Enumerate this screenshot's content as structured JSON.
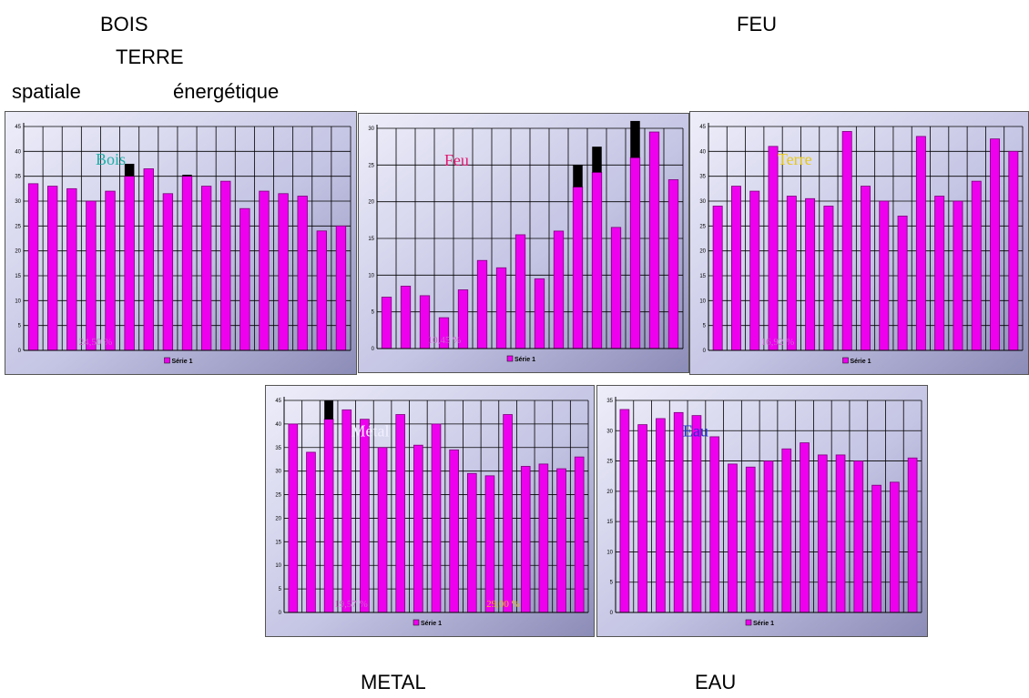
{
  "labels": {
    "bois": "BOIS",
    "terre": "TERRE",
    "spatiale": "spatiale",
    "energetique": "énergétique",
    "feu": "FEU",
    "metal": "METAL",
    "eau": "EAU"
  },
  "colors": {
    "bar": "#ee00ee",
    "bar_top": "#000000",
    "bg_light": "#eeeefa",
    "bg_dark": "#8c8cb8",
    "grid": "#000000"
  },
  "chart_data": [
    {
      "id": "bois",
      "type": "bar",
      "ylim": [
        0,
        45
      ],
      "yticks": [
        "45",
        "40",
        "35",
        "30",
        "25",
        "20",
        "15",
        "10",
        "5",
        "0"
      ],
      "values": [
        33.5,
        33,
        32.5,
        30,
        32,
        35,
        36.5,
        31.5,
        35,
        33,
        34,
        28.5,
        32,
        31.5,
        31,
        24,
        25
      ],
      "highlights": [
        null,
        null,
        null,
        null,
        null,
        2.5,
        null,
        null,
        0.3,
        null,
        null,
        null,
        null,
        null,
        null,
        null,
        null
      ],
      "title": "Bois",
      "title_color": "#20b0a8",
      "legend": "Série 1",
      "annotations": [
        {
          "text": "24,50 %",
          "color": "#d060d0"
        },
        {
          "text": "",
          "color": "#e8b820"
        }
      ]
    },
    {
      "id": "feu",
      "type": "bar",
      "ylim": [
        0,
        30
      ],
      "yticks": [
        "30",
        "25",
        "20",
        "15",
        "10",
        "5",
        "0"
      ],
      "values": [
        7,
        8.5,
        7.2,
        4.2,
        8,
        12,
        11,
        15.5,
        9.5,
        16,
        22,
        24,
        16.5,
        26,
        29.5,
        23
      ],
      "highlights": [
        null,
        null,
        null,
        null,
        null,
        null,
        null,
        null,
        null,
        null,
        3,
        3.5,
        null,
        5,
        null,
        null
      ],
      "title": "Feu",
      "title_color": "#e01a70",
      "legend": "Série 1",
      "annotations": [
        {
          "text": "10,45 %",
          "color": "#d060d0"
        },
        {
          "text": "",
          "color": "#e8b820"
        }
      ]
    },
    {
      "id": "terre",
      "type": "bar",
      "ylim": [
        0,
        45
      ],
      "yticks": [
        "45",
        "40",
        "35",
        "30",
        "25",
        "20",
        "15",
        "10",
        "5",
        "0"
      ],
      "values": [
        29,
        33,
        32,
        41,
        31,
        30.5,
        29,
        44,
        33,
        30,
        27,
        43,
        31,
        30,
        34,
        42.5,
        40
      ],
      "highlights": null,
      "title": "Terre",
      "title_color": "#e8c810",
      "legend": "Série 1",
      "annotations": [
        {
          "text": "16,92 %",
          "color": "#d060d0"
        },
        {
          "text": "",
          "color": "#e8b820"
        }
      ]
    },
    {
      "id": "metal",
      "type": "bar",
      "ylim": [
        0,
        45
      ],
      "yticks": [
        "45",
        "40",
        "35",
        "30",
        "25",
        "20",
        "15",
        "10",
        "5",
        "0"
      ],
      "values": [
        40,
        34,
        41,
        43,
        41,
        35,
        42,
        35.5,
        40,
        34.5,
        29.5,
        29,
        42,
        31,
        31.5,
        30.5,
        33
      ],
      "highlights": [
        null,
        null,
        4,
        null,
        null,
        null,
        null,
        null,
        null,
        null,
        null,
        null,
        null,
        null,
        null,
        null,
        null
      ],
      "title": "Métal",
      "title_color": "#f0f0ff",
      "legend": "Série 1",
      "annotations": [
        {
          "text": "19,57 %",
          "color": "#d060d0"
        },
        {
          "text": "29,00 %",
          "color": "#e8b820"
        }
      ]
    },
    {
      "id": "eau",
      "type": "bar",
      "ylim": [
        0,
        35
      ],
      "yticks": [
        "35",
        "30",
        "25",
        "20",
        "15",
        "10",
        "5",
        "0"
      ],
      "values": [
        33.5,
        31,
        32,
        33,
        32.5,
        29,
        24.5,
        24,
        25,
        27,
        28,
        26,
        26,
        25,
        21,
        21.5,
        25.5
      ],
      "highlights": null,
      "title": "Eau",
      "title_color": "#2030d0",
      "legend": "Série 1",
      "annotations": [
        {
          "text": "",
          "color": "#d060d0"
        },
        {
          "text": "",
          "color": "#e8b820"
        }
      ]
    }
  ]
}
